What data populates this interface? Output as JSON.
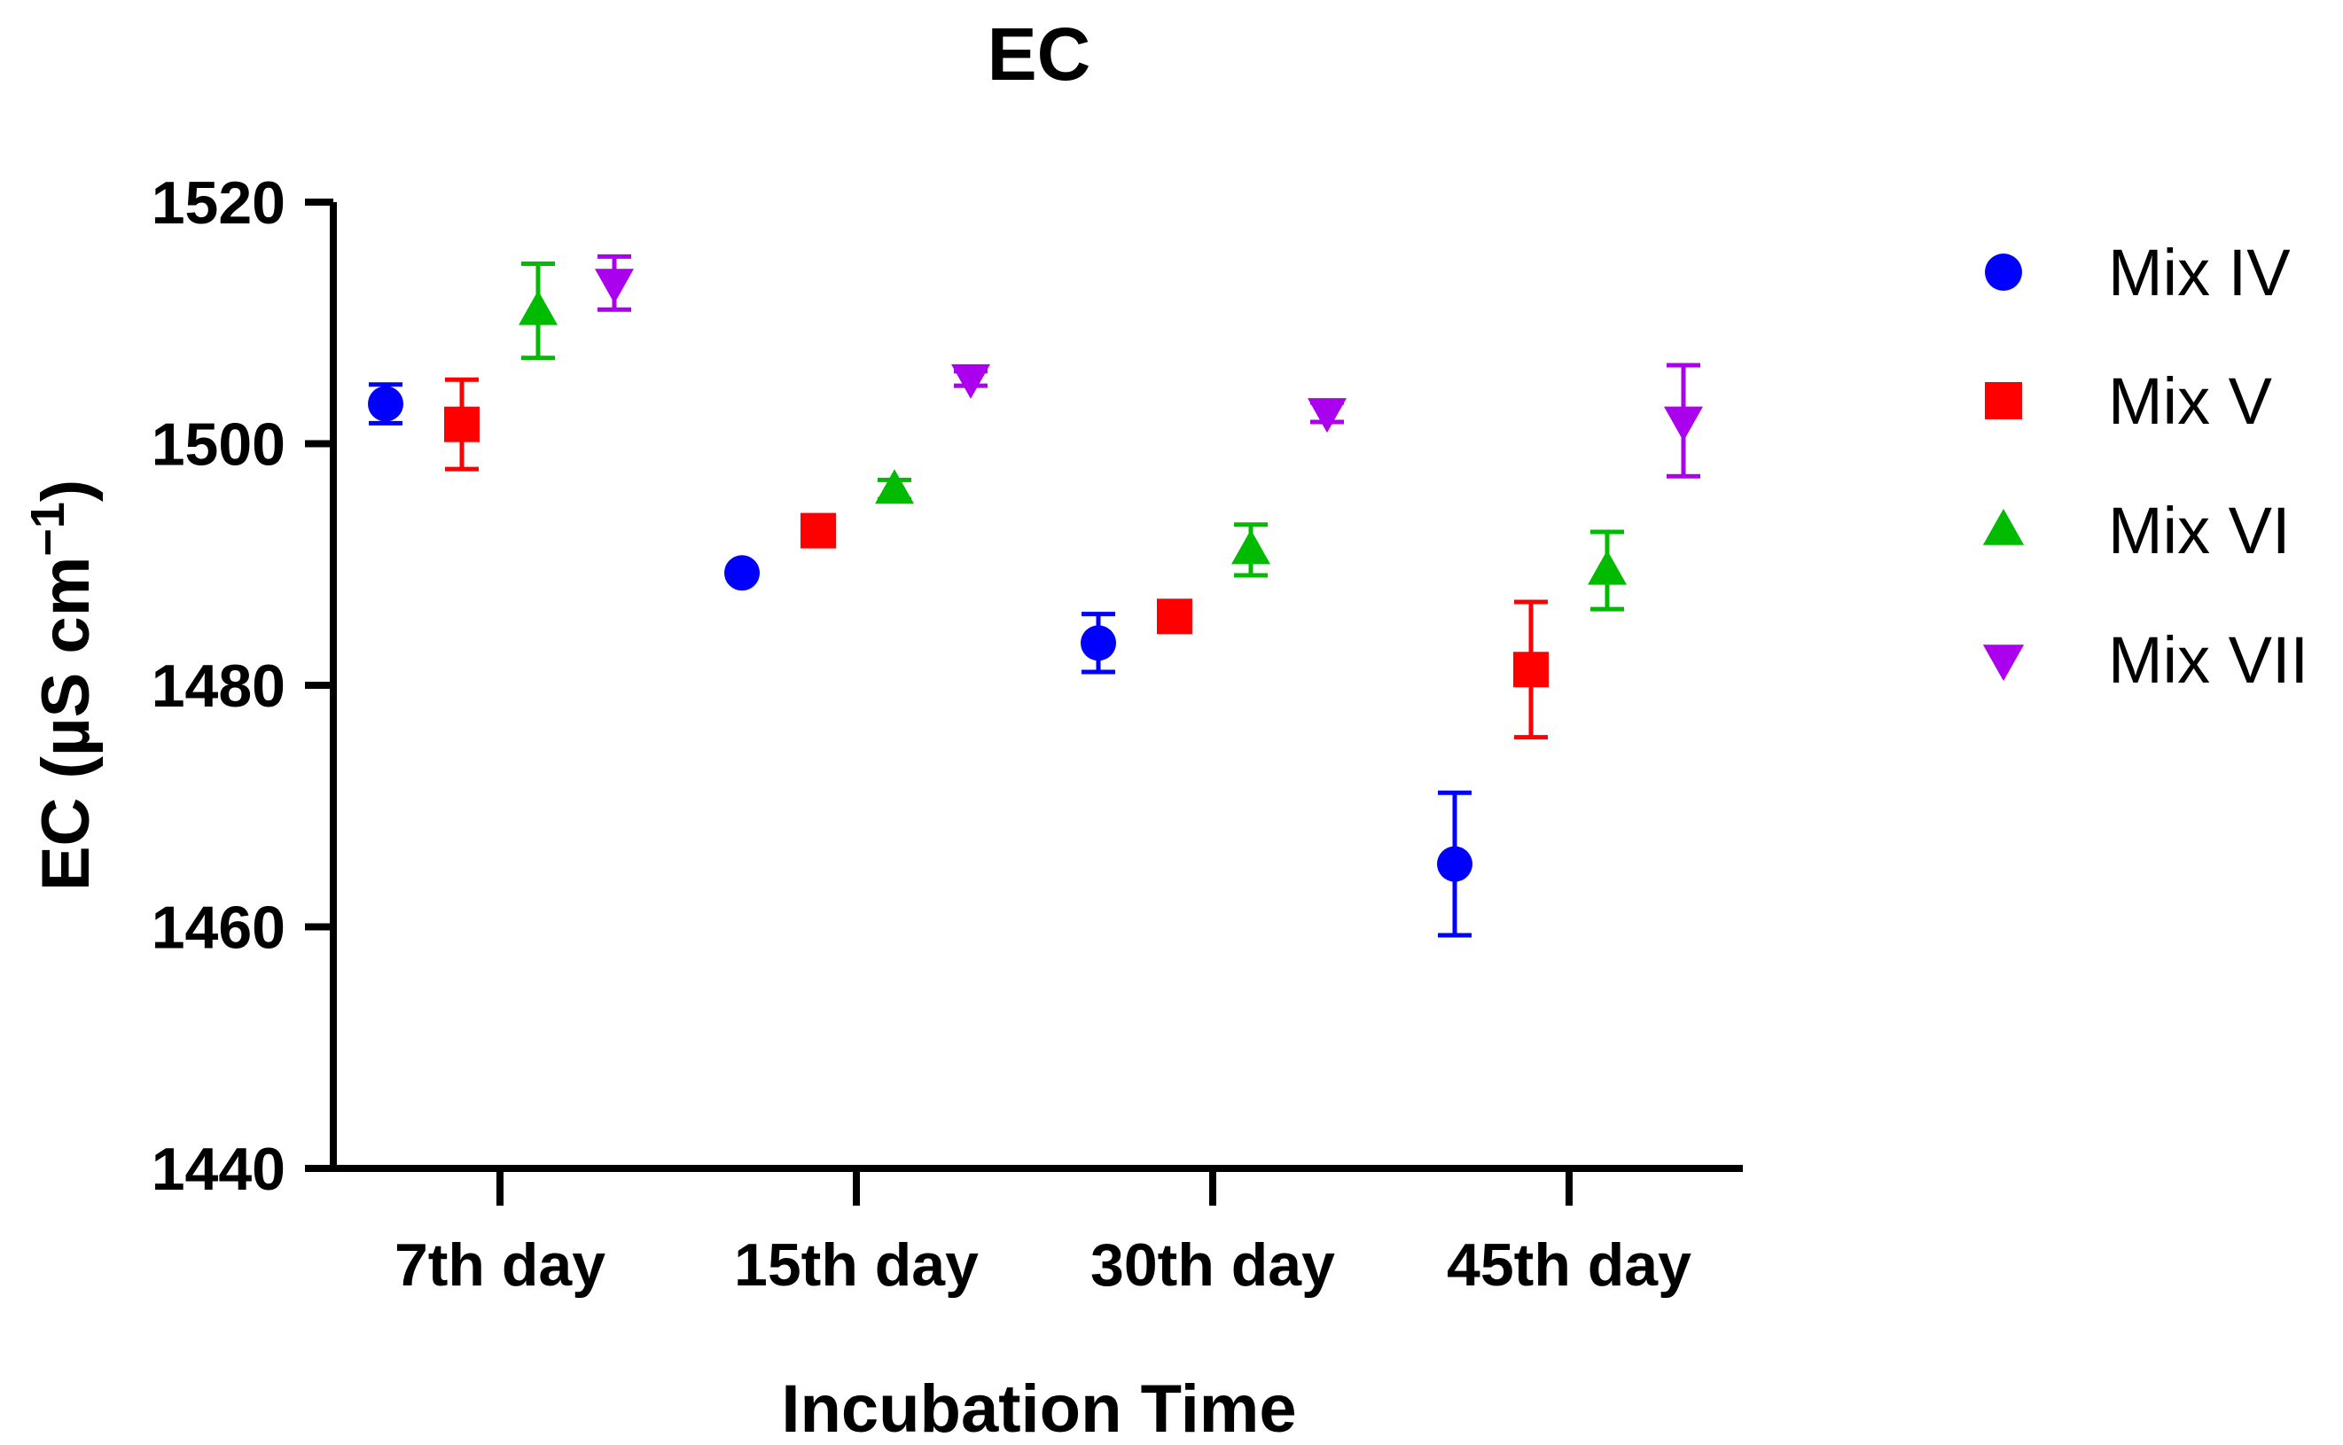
{
  "chart_data": {
    "type": "scatter",
    "title": "EC",
    "xlabel": "Incubation Time",
    "ylabel_main": "EC (µS cm",
    "ylabel_sup": "−1",
    "ylabel_close": ")",
    "categories": [
      "7th day",
      "15th day",
      "30th day",
      "45th day"
    ],
    "ylim": [
      1440,
      1520
    ],
    "yticks": [
      1440,
      1460,
      1480,
      1500,
      1520
    ],
    "grid": false,
    "legend_position": "right",
    "series": [
      {
        "name": "Mix IV",
        "marker": "circle",
        "color": "#0000ff",
        "values": [
          1503.3,
          1489.3,
          1483.5,
          1465.2
        ],
        "errors": [
          1.6,
          0.3,
          2.4,
          5.9
        ]
      },
      {
        "name": "Mix V",
        "marker": "square",
        "color": "#ff0000",
        "values": [
          1501.6,
          1492.8,
          1485.7,
          1481.3
        ],
        "errors": [
          3.7,
          0.8,
          0.3,
          5.6
        ]
      },
      {
        "name": "Mix VI",
        "marker": "triangle-up",
        "color": "#00bb00",
        "values": [
          1511.0,
          1496.2,
          1491.2,
          1489.5
        ],
        "errors": [
          3.9,
          0.8,
          2.1,
          3.2
        ]
      },
      {
        "name": "Mix VII",
        "marker": "triangle-down",
        "color": "#aa00ee",
        "values": [
          1513.3,
          1505.4,
          1502.6,
          1501.9
        ],
        "errors": [
          2.2,
          0.6,
          0.8,
          4.6
        ]
      }
    ]
  }
}
